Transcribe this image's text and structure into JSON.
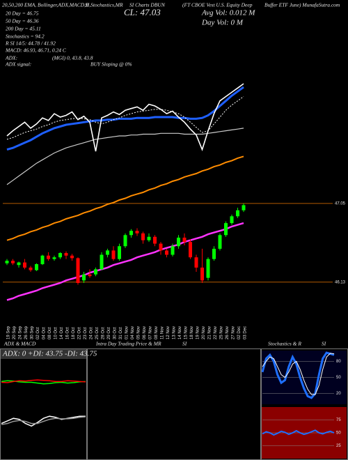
{
  "header": {
    "top_line": [
      "20,50,200 EMA, Bollinger,ADX,MACD,B",
      "SI,Stochastics,MR",
      "SI Charts DBUN",
      "(FT CBOE Vest U.S. Equity Deep",
      "Buffer ETF June) MunafaSutra.com"
    ],
    "left_lines": [
      "20 Day = 46.75",
      "50 Day = 46.36",
      "200 Day = 45.11",
      "Stochastics = 94.2",
      "R   SI 14/5: 44.78 / 41.92",
      "MACD: 46.93, 46.71, 0.24  C"
    ],
    "adx_label": "ADX:",
    "adx_value": "(MGI) 0, 43.8, 43.8",
    "adx_signal_label": "ADX  signal:",
    "adx_signal_value": "BUY Sloping @ 0%",
    "close": "CL: 47.03",
    "avg_vol": "Avg Vol: 0.012  M",
    "day_vol": "Day Vol: 0  M"
  },
  "intraday_panel": {
    "title": "Intra Day Trading Price  & MR",
    "suffix": "SI"
  },
  "chart_data": [
    {
      "type": "candlestick",
      "x": [
        "19 Sep",
        "20 Sep",
        "24 Sep",
        "26 Sep",
        "30 Sep",
        "02 Oct",
        "04 Oct",
        "08 Oct",
        "10 Oct",
        "14 Oct",
        "16 Oct",
        "18 Oct",
        "22 Oct",
        "23 Oct",
        "24 Oct",
        "25 Oct",
        "28 Oct",
        "29 Oct",
        "30 Oct",
        "31 Oct",
        "01 Nov",
        "04 Nov",
        "05 Nov",
        "06 Nov",
        "07 Nov",
        "08 Nov",
        "11 Nov",
        "12 Nov",
        "13 Nov",
        "14 Nov",
        "15 Nov",
        "18 Nov",
        "19 Nov",
        "20 Nov",
        "21 Nov",
        "22 Nov",
        "25 Nov",
        "26 Nov",
        "27 Nov",
        "02 Dec",
        "03 Dec"
      ],
      "open": [
        46.35,
        46.38,
        46.33,
        46.36,
        46.3,
        46.27,
        46.34,
        46.44,
        46.4,
        46.42,
        46.47,
        46.44,
        46.41,
        46.15,
        46.22,
        46.22,
        46.28,
        46.45,
        46.5,
        46.4,
        46.55,
        46.68,
        46.73,
        46.7,
        46.62,
        46.66,
        46.58,
        46.5,
        46.45,
        46.55,
        46.65,
        46.6,
        46.42,
        46.3,
        46.18,
        46.4,
        46.52,
        46.68,
        46.82,
        46.9,
        46.97
      ],
      "high": [
        46.4,
        46.4,
        46.37,
        46.4,
        46.32,
        46.35,
        46.45,
        46.48,
        46.44,
        46.48,
        46.49,
        46.46,
        46.42,
        46.25,
        46.28,
        46.3,
        46.48,
        46.52,
        46.55,
        46.58,
        46.7,
        46.75,
        46.76,
        46.72,
        46.7,
        46.68,
        46.6,
        46.52,
        46.58,
        46.68,
        46.7,
        46.63,
        46.45,
        46.52,
        46.42,
        46.55,
        46.7,
        46.84,
        46.92,
        47.0,
        47.05
      ],
      "low": [
        46.33,
        46.33,
        46.3,
        46.28,
        46.25,
        46.26,
        46.33,
        46.38,
        46.38,
        46.4,
        46.4,
        46.38,
        46.1,
        46.12,
        46.18,
        46.2,
        46.27,
        46.42,
        46.38,
        46.38,
        46.53,
        46.65,
        46.67,
        46.58,
        46.6,
        46.55,
        46.45,
        46.42,
        46.43,
        46.52,
        46.56,
        46.4,
        46.25,
        46.12,
        46.15,
        46.38,
        46.5,
        46.66,
        46.8,
        46.88,
        46.95
      ],
      "close": [
        46.38,
        46.35,
        46.36,
        46.3,
        46.27,
        46.34,
        46.44,
        46.4,
        46.42,
        46.47,
        46.44,
        46.41,
        46.12,
        46.22,
        46.2,
        46.28,
        46.45,
        46.5,
        46.4,
        46.55,
        46.68,
        46.73,
        46.7,
        46.62,
        46.66,
        46.58,
        46.5,
        46.45,
        46.55,
        46.65,
        46.6,
        46.42,
        46.3,
        46.15,
        46.4,
        46.52,
        46.68,
        46.82,
        46.9,
        46.97,
        47.03
      ],
      "up_color": "#00ff00",
      "down_color": "#ff0000",
      "ylim": [
        45.9,
        48.5
      ],
      "yticks": [
        46.13,
        47.05
      ],
      "grid": true,
      "grid_color": "#b35a00",
      "overlays": [
        {
          "color": "#ff33ff",
          "width": 2.5,
          "values": [
            45.92,
            45.94,
            45.97,
            45.99,
            46.01,
            46.03,
            46.06,
            46.08,
            46.1,
            46.12,
            46.15,
            46.17,
            46.19,
            46.21,
            46.24,
            46.26,
            46.28,
            46.3,
            46.33,
            46.35,
            46.37,
            46.39,
            46.42,
            46.44,
            46.46,
            46.48,
            46.51,
            46.53,
            46.55,
            46.57,
            46.6,
            46.62,
            46.64,
            46.66,
            46.69,
            46.71,
            46.73,
            46.75,
            46.78,
            46.8,
            46.82
          ]
        },
        {
          "color": "#ff8c00",
          "width": 2,
          "values": [
            46.62,
            46.64,
            46.67,
            46.69,
            46.72,
            46.74,
            46.77,
            46.79,
            46.82,
            46.84,
            46.87,
            46.89,
            46.91,
            46.94,
            46.96,
            46.99,
            47.01,
            47.04,
            47.06,
            47.09,
            47.11,
            47.14,
            47.16,
            47.18,
            47.21,
            47.23,
            47.26,
            47.28,
            47.31,
            47.33,
            47.36,
            47.38,
            47.4,
            47.43,
            47.45,
            47.48,
            47.5,
            47.53,
            47.55,
            47.58,
            47.6
          ]
        },
        {
          "color": "#cccccc",
          "width": 1.2,
          "values": [
            47.27,
            47.32,
            47.37,
            47.42,
            47.47,
            47.52,
            47.56,
            47.6,
            47.64,
            47.67,
            47.7,
            47.72,
            47.74,
            47.76,
            47.78,
            47.8,
            47.81,
            47.82,
            47.83,
            47.84,
            47.84,
            47.85,
            47.85,
            47.86,
            47.86,
            47.86,
            47.87,
            47.87,
            47.87,
            47.87,
            47.86,
            47.86,
            47.86,
            47.86,
            47.87,
            47.88,
            47.89,
            47.9,
            47.91,
            47.92,
            47.93
          ]
        },
        {
          "color": "#1e5fff",
          "width": 3,
          "values": [
            47.68,
            47.7,
            47.73,
            47.76,
            47.79,
            47.83,
            47.87,
            47.9,
            47.93,
            47.95,
            47.97,
            47.98,
            47.99,
            48.0,
            48.01,
            48.02,
            48.02,
            48.03,
            48.03,
            48.04,
            48.04,
            48.04,
            48.05,
            48.05,
            48.05,
            48.06,
            48.06,
            48.06,
            48.06,
            48.05,
            48.05,
            48.04,
            48.04,
            48.05,
            48.08,
            48.13,
            48.19,
            48.25,
            48.31,
            48.36,
            48.41
          ]
        },
        {
          "color": "#ffffff",
          "width": 1,
          "dashed": true,
          "values": [
            47.8,
            47.82,
            47.85,
            47.88,
            47.9,
            47.92,
            47.95,
            47.97,
            48.0,
            48.02,
            48.03,
            48.04,
            48.05,
            48.04,
            48.03,
            48.0,
            47.98,
            48.0,
            48.03,
            48.05,
            48.08,
            48.1,
            48.12,
            48.13,
            48.14,
            48.15,
            48.15,
            48.14,
            48.12,
            48.1,
            48.06,
            48.0,
            47.94,
            47.88,
            47.9,
            47.98,
            48.06,
            48.14,
            48.2,
            48.25,
            48.3
          ]
        },
        {
          "color": "#ffffff",
          "width": 1.6,
          "values": [
            47.84,
            47.9,
            47.95,
            48.0,
            47.93,
            47.98,
            48.05,
            48.02,
            48.1,
            48.06,
            48.08,
            48.12,
            48.03,
            48.07,
            48.0,
            47.66,
            48.05,
            48.08,
            48.12,
            48.09,
            48.14,
            48.16,
            48.18,
            48.14,
            48.21,
            48.19,
            48.15,
            48.1,
            48.13,
            48.06,
            48.0,
            47.92,
            47.85,
            47.68,
            47.9,
            48.1,
            48.25,
            48.3,
            48.35,
            48.4,
            48.45
          ]
        }
      ]
    },
    {
      "type": "line",
      "title": "ADX  & MACD",
      "subtitle": "ADX: 0  +DI: 43.75  -DI: 43.75",
      "ylim": [
        0,
        100
      ],
      "series": [
        {
          "color": "#00ff00",
          "values": [
            44,
            46,
            45,
            43,
            42,
            42,
            40,
            38,
            39,
            41,
            42,
            40,
            41,
            43,
            44
          ]
        },
        {
          "color": "#ff0000",
          "values": [
            42,
            41,
            44,
            46,
            45,
            47,
            48,
            47,
            46,
            44,
            44,
            46,
            45,
            44,
            43
          ]
        }
      ]
    },
    {
      "type": "line",
      "ylim": [
        -0.5,
        0.5
      ],
      "series": [
        {
          "color": "#ffffff",
          "values": [
            0.1,
            0.15,
            0.2,
            0.18,
            0.1,
            0.05,
            0.12,
            0.2,
            0.24,
            0.22,
            0.18,
            0.2,
            0.22,
            0.24,
            0.24
          ]
        },
        {
          "color": "#999999",
          "values": [
            0.08,
            0.1,
            0.14,
            0.16,
            0.14,
            0.1,
            0.1,
            0.14,
            0.18,
            0.2,
            0.19,
            0.19,
            0.2,
            0.22,
            0.23
          ]
        }
      ]
    },
    {
      "type": "line",
      "title": "Stochastics & R",
      "subtitle": "SI",
      "ylim": [
        0,
        100
      ],
      "yticks": [
        20,
        50,
        80
      ],
      "background": "#000020",
      "series": [
        {
          "color": "#1e6fff",
          "width": 3,
          "values": [
            60,
            85,
            92,
            80,
            55,
            40,
            45,
            70,
            88,
            75,
            50,
            30,
            15,
            12,
            20,
            55,
            85,
            96,
            94,
            92
          ]
        },
        {
          "color": "#ffffff",
          "width": 1,
          "values": [
            70,
            80,
            88,
            85,
            70,
            55,
            50,
            60,
            75,
            80,
            65,
            45,
            28,
            18,
            18,
            35,
            65,
            88,
            95,
            94
          ]
        }
      ]
    },
    {
      "type": "line",
      "ylim": [
        0,
        100
      ],
      "yticks": [
        25,
        50,
        75
      ],
      "background": "#8b0000",
      "series": [
        {
          "color": "#1e6fff",
          "width": 2,
          "values": [
            48,
            52,
            50,
            46,
            49,
            53,
            51,
            47,
            50,
            54,
            50,
            47,
            49,
            52,
            55,
            50,
            48,
            51,
            53,
            50
          ]
        }
      ]
    }
  ]
}
